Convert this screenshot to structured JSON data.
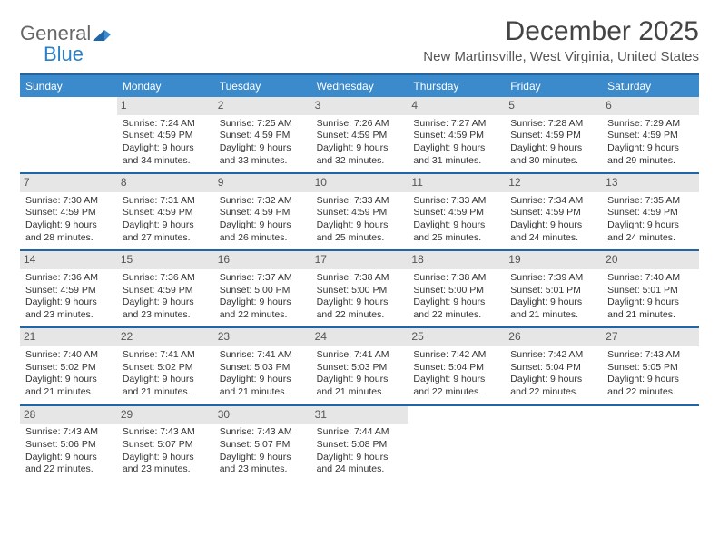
{
  "logo": {
    "text_gray": "General",
    "text_blue": "Blue"
  },
  "title": "December 2025",
  "subtitle": "New Martinsville, West Virginia, United States",
  "colors": {
    "header_bg": "#3b8acb",
    "header_bar": "#1e66a8",
    "daynum_bg": "#e6e6e6",
    "text": "#333333",
    "page_bg": "#ffffff"
  },
  "day_headers": [
    "Sunday",
    "Monday",
    "Tuesday",
    "Wednesday",
    "Thursday",
    "Friday",
    "Saturday"
  ],
  "weeks": [
    [
      {
        "n": "",
        "empty": true
      },
      {
        "n": "1",
        "sunrise": "7:24 AM",
        "sunset": "4:59 PM",
        "day_h": 9,
        "day_m": 34
      },
      {
        "n": "2",
        "sunrise": "7:25 AM",
        "sunset": "4:59 PM",
        "day_h": 9,
        "day_m": 33
      },
      {
        "n": "3",
        "sunrise": "7:26 AM",
        "sunset": "4:59 PM",
        "day_h": 9,
        "day_m": 32
      },
      {
        "n": "4",
        "sunrise": "7:27 AM",
        "sunset": "4:59 PM",
        "day_h": 9,
        "day_m": 31
      },
      {
        "n": "5",
        "sunrise": "7:28 AM",
        "sunset": "4:59 PM",
        "day_h": 9,
        "day_m": 30
      },
      {
        "n": "6",
        "sunrise": "7:29 AM",
        "sunset": "4:59 PM",
        "day_h": 9,
        "day_m": 29
      }
    ],
    [
      {
        "n": "7",
        "sunrise": "7:30 AM",
        "sunset": "4:59 PM",
        "day_h": 9,
        "day_m": 28
      },
      {
        "n": "8",
        "sunrise": "7:31 AM",
        "sunset": "4:59 PM",
        "day_h": 9,
        "day_m": 27
      },
      {
        "n": "9",
        "sunrise": "7:32 AM",
        "sunset": "4:59 PM",
        "day_h": 9,
        "day_m": 26
      },
      {
        "n": "10",
        "sunrise": "7:33 AM",
        "sunset": "4:59 PM",
        "day_h": 9,
        "day_m": 25
      },
      {
        "n": "11",
        "sunrise": "7:33 AM",
        "sunset": "4:59 PM",
        "day_h": 9,
        "day_m": 25
      },
      {
        "n": "12",
        "sunrise": "7:34 AM",
        "sunset": "4:59 PM",
        "day_h": 9,
        "day_m": 24
      },
      {
        "n": "13",
        "sunrise": "7:35 AM",
        "sunset": "4:59 PM",
        "day_h": 9,
        "day_m": 24
      }
    ],
    [
      {
        "n": "14",
        "sunrise": "7:36 AM",
        "sunset": "4:59 PM",
        "day_h": 9,
        "day_m": 23
      },
      {
        "n": "15",
        "sunrise": "7:36 AM",
        "sunset": "4:59 PM",
        "day_h": 9,
        "day_m": 23
      },
      {
        "n": "16",
        "sunrise": "7:37 AM",
        "sunset": "5:00 PM",
        "day_h": 9,
        "day_m": 22
      },
      {
        "n": "17",
        "sunrise": "7:38 AM",
        "sunset": "5:00 PM",
        "day_h": 9,
        "day_m": 22
      },
      {
        "n": "18",
        "sunrise": "7:38 AM",
        "sunset": "5:00 PM",
        "day_h": 9,
        "day_m": 22
      },
      {
        "n": "19",
        "sunrise": "7:39 AM",
        "sunset": "5:01 PM",
        "day_h": 9,
        "day_m": 21
      },
      {
        "n": "20",
        "sunrise": "7:40 AM",
        "sunset": "5:01 PM",
        "day_h": 9,
        "day_m": 21
      }
    ],
    [
      {
        "n": "21",
        "sunrise": "7:40 AM",
        "sunset": "5:02 PM",
        "day_h": 9,
        "day_m": 21
      },
      {
        "n": "22",
        "sunrise": "7:41 AM",
        "sunset": "5:02 PM",
        "day_h": 9,
        "day_m": 21
      },
      {
        "n": "23",
        "sunrise": "7:41 AM",
        "sunset": "5:03 PM",
        "day_h": 9,
        "day_m": 21
      },
      {
        "n": "24",
        "sunrise": "7:41 AM",
        "sunset": "5:03 PM",
        "day_h": 9,
        "day_m": 21
      },
      {
        "n": "25",
        "sunrise": "7:42 AM",
        "sunset": "5:04 PM",
        "day_h": 9,
        "day_m": 22
      },
      {
        "n": "26",
        "sunrise": "7:42 AM",
        "sunset": "5:04 PM",
        "day_h": 9,
        "day_m": 22
      },
      {
        "n": "27",
        "sunrise": "7:43 AM",
        "sunset": "5:05 PM",
        "day_h": 9,
        "day_m": 22
      }
    ],
    [
      {
        "n": "28",
        "sunrise": "7:43 AM",
        "sunset": "5:06 PM",
        "day_h": 9,
        "day_m": 22
      },
      {
        "n": "29",
        "sunrise": "7:43 AM",
        "sunset": "5:07 PM",
        "day_h": 9,
        "day_m": 23
      },
      {
        "n": "30",
        "sunrise": "7:43 AM",
        "sunset": "5:07 PM",
        "day_h": 9,
        "day_m": 23
      },
      {
        "n": "31",
        "sunrise": "7:44 AM",
        "sunset": "5:08 PM",
        "day_h": 9,
        "day_m": 24
      },
      {
        "n": "",
        "empty": true
      },
      {
        "n": "",
        "empty": true
      },
      {
        "n": "",
        "empty": true
      }
    ]
  ],
  "label_fmt": {
    "sunrise_prefix": "Sunrise: ",
    "sunset_prefix": "Sunset: ",
    "daylight_prefix": "Daylight: ",
    "hours_word": " hours",
    "and_word": "and ",
    "minutes_word": " minutes."
  }
}
